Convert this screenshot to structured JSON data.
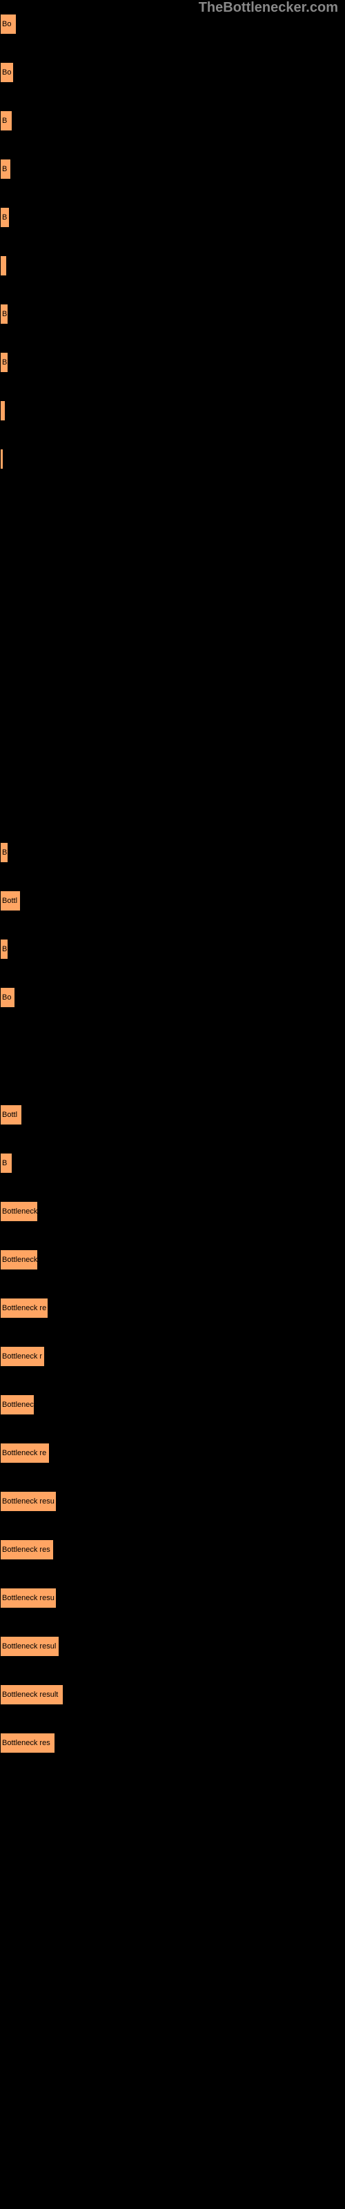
{
  "watermark": "TheBottlenecker.com",
  "chart": {
    "type": "bar",
    "background_color": "#000000",
    "bar_color": "#ffa563",
    "bar_border_color": "#000000",
    "text_color": "#000000",
    "watermark_color": "#888888",
    "bars": [
      {
        "label": "Bo",
        "width": 24
      },
      {
        "label": "Bo",
        "width": 20
      },
      {
        "label": "B",
        "width": 18
      },
      {
        "label": "B",
        "width": 16
      },
      {
        "label": "B",
        "width": 14
      },
      {
        "label": "",
        "width": 10
      },
      {
        "label": "B",
        "width": 12
      },
      {
        "label": "B",
        "width": 12
      },
      {
        "label": "",
        "width": 8
      },
      {
        "label": "",
        "width": 5
      }
    ],
    "bars_section2": [
      {
        "label": "B",
        "width": 12
      },
      {
        "label": "Bottl",
        "width": 30
      },
      {
        "label": "B",
        "width": 12
      },
      {
        "label": "Bo",
        "width": 22
      }
    ],
    "bars_section3": [
      {
        "label": "Bottl",
        "width": 32
      },
      {
        "label": "B",
        "width": 18
      },
      {
        "label": "Bottleneck",
        "width": 55
      },
      {
        "label": "Bottleneck",
        "width": 55
      },
      {
        "label": "Bottleneck re",
        "width": 70
      },
      {
        "label": "Bottleneck r",
        "width": 65
      },
      {
        "label": "Bottlenec",
        "width": 50
      },
      {
        "label": "Bottleneck re",
        "width": 72
      },
      {
        "label": "Bottleneck resu",
        "width": 82
      },
      {
        "label": "Bottleneck res",
        "width": 78
      },
      {
        "label": "Bottleneck resu",
        "width": 82
      },
      {
        "label": "Bottleneck resul",
        "width": 86
      },
      {
        "label": "Bottleneck result",
        "width": 92
      },
      {
        "label": "Bottleneck res",
        "width": 80
      }
    ]
  }
}
